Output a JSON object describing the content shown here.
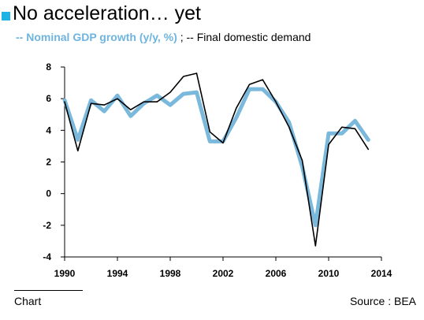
{
  "header": {
    "title": "No acceleration… yet",
    "subtitle_nominal": "-- Nominal GDP growth (y/y, %)",
    "subtitle_sep": " ; ",
    "subtitle_final": "-- Final domestic demand"
  },
  "footer": {
    "left": "Chart",
    "right": "Source : BEA"
  },
  "colors": {
    "accent": "#1fb3e5",
    "nominal_gdp": "#7ab8dc",
    "final_demand": "#000000"
  },
  "chart_data": {
    "type": "line",
    "title": "No acceleration… yet",
    "xlim": [
      1990,
      2014
    ],
    "ylim": [
      -4,
      8
    ],
    "x_ticks": [
      1990,
      1994,
      1998,
      2002,
      2006,
      2010,
      2014
    ],
    "y_ticks": [
      -4,
      -2,
      0,
      2,
      4,
      6,
      8
    ],
    "grid": false,
    "x": [
      1990,
      1991,
      1992,
      1993,
      1994,
      1995,
      1996,
      1997,
      1998,
      1999,
      2000,
      2001,
      2002,
      2003,
      2004,
      2005,
      2006,
      2007,
      2008,
      2009,
      2010,
      2011,
      2012,
      2013
    ],
    "series": [
      {
        "name": "Nominal GDP growth (y/y, %)",
        "values": [
          5.9,
          3.4,
          5.9,
          5.2,
          6.2,
          4.9,
          5.7,
          6.2,
          5.6,
          6.3,
          6.4,
          3.3,
          3.3,
          4.8,
          6.6,
          6.6,
          5.8,
          4.5,
          1.7,
          -2.0,
          3.8,
          3.8,
          4.6,
          3.4
        ]
      },
      {
        "name": "Final domestic demand",
        "values": [
          5.8,
          2.7,
          5.7,
          5.6,
          6.0,
          5.3,
          5.8,
          5.8,
          6.4,
          7.4,
          7.6,
          3.9,
          3.2,
          5.4,
          6.9,
          7.2,
          5.8,
          4.2,
          2.1,
          -3.3,
          3.1,
          4.2,
          4.1,
          2.8
        ]
      }
    ]
  }
}
